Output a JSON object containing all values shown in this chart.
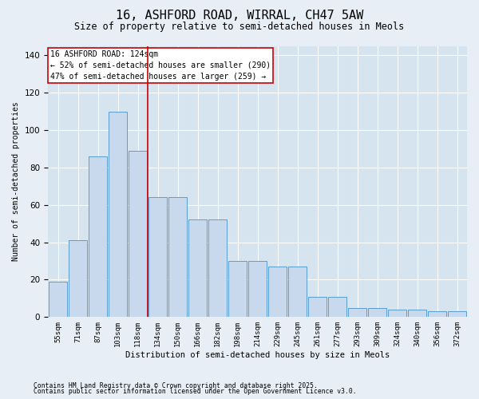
{
  "title": "16, ASHFORD ROAD, WIRRAL, CH47 5AW",
  "subtitle": "Size of property relative to semi-detached houses in Meols",
  "xlabel": "Distribution of semi-detached houses by size in Meols",
  "ylabel": "Number of semi-detached properties",
  "categories": [
    "55sqm",
    "71sqm",
    "87sqm",
    "103sqm",
    "118sqm",
    "134sqm",
    "150sqm",
    "166sqm",
    "182sqm",
    "198sqm",
    "214sqm",
    "229sqm",
    "245sqm",
    "261sqm",
    "277sqm",
    "293sqm",
    "309sqm",
    "324sqm",
    "340sqm",
    "356sqm",
    "372sqm"
  ],
  "bar_heights": [
    19,
    41,
    86,
    110,
    89,
    64,
    64,
    52,
    52,
    30,
    30,
    27,
    27,
    11,
    11,
    5,
    5,
    4,
    4,
    3,
    3
  ],
  "bar_color": "#c8d9ed",
  "bar_edge_color": "#5b9bd5",
  "vline_color": "#cc0000",
  "annotation_title": "16 ASHFORD ROAD: 124sqm",
  "annotation_line1": "← 52% of semi-detached houses are smaller (290)",
  "annotation_line2": "47% of semi-detached houses are larger (259) →",
  "ylim": [
    0,
    145
  ],
  "yticks": [
    0,
    20,
    40,
    60,
    80,
    100,
    120,
    140
  ],
  "footnote1": "Contains HM Land Registry data © Crown copyright and database right 2025.",
  "footnote2": "Contains public sector information licensed under the Open Government Licence v3.0.",
  "background_color": "#e8eef5",
  "plot_background": "#d6e4f0"
}
